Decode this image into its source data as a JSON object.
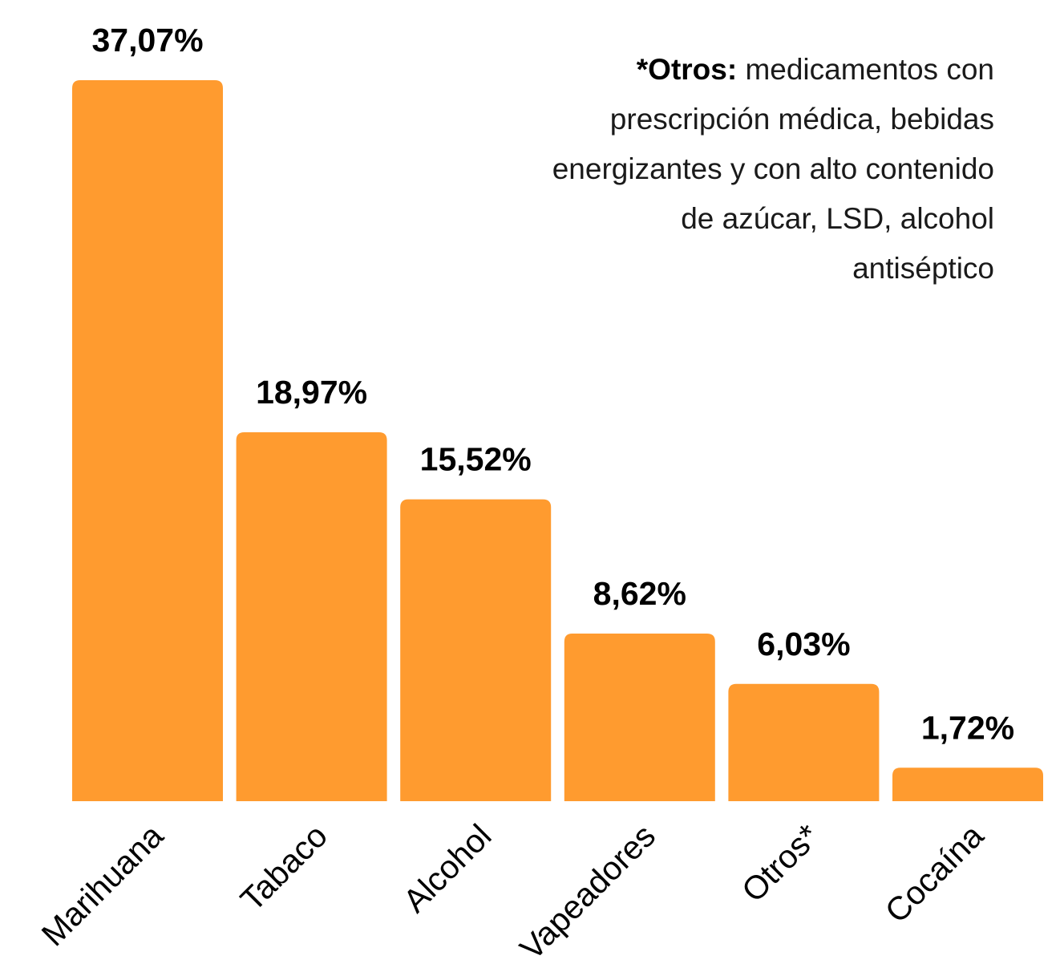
{
  "chart_data": {
    "type": "bar",
    "categories": [
      "Marihuana",
      "Tabaco",
      "Alcohol",
      "Vapeadores",
      "Otros*",
      "Cocaína"
    ],
    "values": [
      37.07,
      18.97,
      15.52,
      8.62,
      6.03,
      1.72
    ],
    "data_labels": [
      "37,07%",
      "18,97%",
      "15,52%",
      "8,62%",
      "6,03%",
      "1,72%"
    ],
    "title": "",
    "xlabel": "",
    "ylabel": "",
    "ylim": [
      0,
      37.07
    ],
    "grid": false,
    "legend": "none",
    "bar_color": "#FF9B2F",
    "annotation": {
      "label": "*Otros:",
      "text": " medicamentos con prescripción médica, bebidas energizantes y con alto contenido de azúcar, LSD, alcohol antiséptico"
    }
  }
}
